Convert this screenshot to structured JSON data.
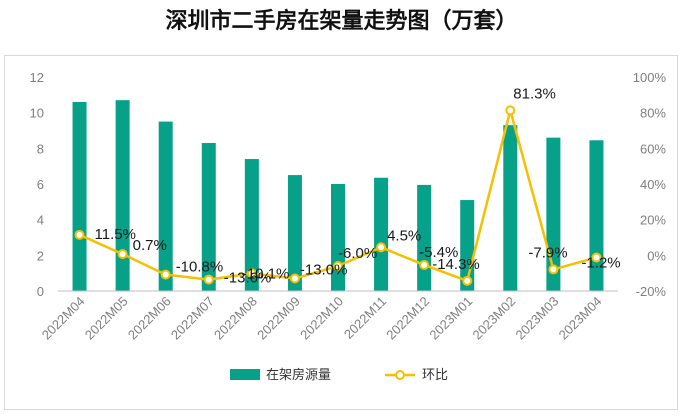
{
  "title": "深圳市二手房在架量走势图（万套）",
  "colors": {
    "bar": "#07a088",
    "line": "#f5c000",
    "marker_fill": "#ffffff",
    "axis": "#bfbfbf"
  },
  "chart_data": {
    "type": "bar+line",
    "title": "深圳市二手房在架量走势图（万套）",
    "categories": [
      "2022M04",
      "2022M05",
      "2022M06",
      "2022M07",
      "2022M08",
      "2022M09",
      "2022M10",
      "2022M11",
      "2022M12",
      "2023M01",
      "2023M02",
      "2023M03",
      "2023M04"
    ],
    "series": [
      {
        "name": "在架房源量",
        "type": "bar",
        "axis": "left",
        "values": [
          10.6,
          10.7,
          9.5,
          8.3,
          7.4,
          6.5,
          6.0,
          6.35,
          5.95,
          5.1,
          9.3,
          8.6,
          8.45
        ]
      },
      {
        "name": "环比",
        "type": "line",
        "axis": "right",
        "values": [
          11.5,
          0.7,
          -10.8,
          -13.6,
          -10.1,
          -13.0,
          -6.0,
          4.5,
          -5.4,
          -14.3,
          81.3,
          -7.9,
          -1.2
        ],
        "labels": [
          "11.5%",
          "0.7%",
          "-10.8%",
          "-13.6%",
          "-10.1%",
          "-13.0%",
          "-6.0%",
          "4.5%",
          "-5.4%",
          "-14.3%",
          "81.3%",
          "-7.9%",
          "-1.2%"
        ]
      }
    ],
    "y_left": {
      "min": 0,
      "max": 12,
      "ticks": [
        "0",
        "2",
        "4",
        "6",
        "8",
        "10",
        "12"
      ]
    },
    "y_right": {
      "min": -20,
      "max": 100,
      "ticks": [
        "-20%",
        "0%",
        "20%",
        "40%",
        "60%",
        "80%",
        "100%"
      ]
    },
    "grid": false,
    "legend_position": "bottom"
  }
}
